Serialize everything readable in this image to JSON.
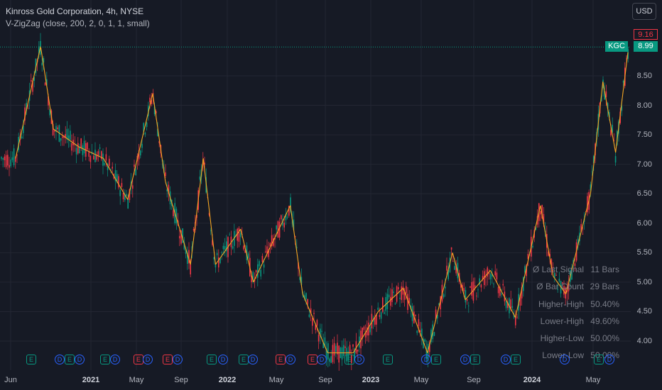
{
  "header": {
    "title": "Kinross Gold Corporation, 4h, NYSE",
    "indicator": "V-ZigZag (close, 200, 2, 0, 1, 1, small)"
  },
  "currency_button": "USD",
  "price_tags": {
    "high": "9.16",
    "symbol": "KGC",
    "last": "8.99"
  },
  "y_axis_labels": [
    "8.50",
    "8.00",
    "7.50",
    "7.00",
    "6.50",
    "6.00",
    "5.50",
    "5.00",
    "4.50",
    "4.00"
  ],
  "x_axis_labels": [
    {
      "text": "Jun",
      "bold": false
    },
    {
      "text": "2021",
      "bold": true
    },
    {
      "text": "May",
      "bold": false
    },
    {
      "text": "Sep",
      "bold": false
    },
    {
      "text": "2022",
      "bold": true
    },
    {
      "text": "May",
      "bold": false
    },
    {
      "text": "Sep",
      "bold": false
    },
    {
      "text": "2023",
      "bold": true
    },
    {
      "text": "May",
      "bold": false
    },
    {
      "text": "Sep",
      "bold": false
    },
    {
      "text": "2024",
      "bold": true
    },
    {
      "text": "May",
      "bold": false
    }
  ],
  "stats": [
    {
      "label": "Ø Last Signal",
      "value": "11 Bars"
    },
    {
      "label": "Ø Bar Count",
      "value": "29 Bars"
    },
    {
      "label": "Higher-High",
      "value": "50.40%"
    },
    {
      "label": "Lower-High",
      "value": "49.60%"
    },
    {
      "label": "Higher-Low",
      "value": "50.00%"
    },
    {
      "label": "Lower-Low",
      "value": "50.00%"
    }
  ],
  "events": [
    {
      "letter": "E",
      "kind": "earnings",
      "color": "#089981"
    },
    {
      "letter": "D",
      "kind": "dividend",
      "color": "#2962ff"
    },
    {
      "letter": "E",
      "kind": "earnings",
      "color": "#089981"
    },
    {
      "letter": "D",
      "kind": "dividend",
      "color": "#2962ff"
    },
    {
      "letter": "E",
      "kind": "earnings",
      "color": "#089981"
    },
    {
      "letter": "D",
      "kind": "dividend",
      "color": "#2962ff"
    },
    {
      "letter": "E",
      "kind": "earnings",
      "color": "#f23645"
    },
    {
      "letter": "D",
      "kind": "dividend",
      "color": "#2962ff"
    },
    {
      "letter": "E",
      "kind": "earnings",
      "color": "#f23645"
    },
    {
      "letter": "D",
      "kind": "dividend",
      "color": "#2962ff"
    },
    {
      "letter": "E",
      "kind": "earnings",
      "color": "#089981"
    },
    {
      "letter": "D",
      "kind": "dividend",
      "color": "#2962ff"
    },
    {
      "letter": "E",
      "kind": "earnings",
      "color": "#089981"
    },
    {
      "letter": "D",
      "kind": "dividend",
      "color": "#2962ff"
    },
    {
      "letter": "E",
      "kind": "earnings",
      "color": "#f23645"
    },
    {
      "letter": "D",
      "kind": "dividend",
      "color": "#2962ff"
    },
    {
      "letter": "E",
      "kind": "earnings",
      "color": "#f23645"
    },
    {
      "letter": "D",
      "kind": "dividend",
      "color": "#2962ff"
    },
    {
      "letter": "E",
      "kind": "earnings",
      "color": "#089981"
    },
    {
      "letter": "D",
      "kind": "dividend",
      "color": "#2962ff"
    },
    {
      "letter": "E",
      "kind": "earnings",
      "color": "#089981"
    },
    {
      "letter": "D",
      "kind": "dividend",
      "color": "#2962ff"
    },
    {
      "letter": "E",
      "kind": "earnings",
      "color": "#089981"
    },
    {
      "letter": "D",
      "kind": "dividend",
      "color": "#2962ff"
    },
    {
      "letter": "E",
      "kind": "earnings",
      "color": "#089981"
    },
    {
      "letter": "D",
      "kind": "dividend",
      "color": "#2962ff"
    },
    {
      "letter": "E",
      "kind": "earnings",
      "color": "#089981"
    },
    {
      "letter": "D",
      "kind": "dividend",
      "color": "#2962ff"
    },
    {
      "letter": "E",
      "kind": "earnings",
      "color": "#089981"
    },
    {
      "letter": "D",
      "kind": "dividend",
      "color": "#2962ff"
    }
  ],
  "colors": {
    "background": "#161a25",
    "up": "#089981",
    "down": "#f23645",
    "zigzag": "#f5a623",
    "grid": "#232632"
  },
  "chart_data": {
    "type": "candlestick",
    "symbol": "KGC",
    "timeframe": "4h",
    "exchange": "NYSE",
    "y_range": [
      3.8,
      9.3
    ],
    "last_price": 8.99,
    "high_price": 9.16,
    "zigzag_pivots": [
      {
        "t": "2020-06",
        "v": 7.1
      },
      {
        "t": "2020-08",
        "v": 9.0
      },
      {
        "t": "2020-09",
        "v": 7.6
      },
      {
        "t": "2020-11",
        "v": 7.3
      },
      {
        "t": "2021-01",
        "v": 7.1
      },
      {
        "t": "2021-03",
        "v": 6.4
      },
      {
        "t": "2021-05",
        "v": 8.2
      },
      {
        "t": "2021-06",
        "v": 6.7
      },
      {
        "t": "2021-08",
        "v": 5.3
      },
      {
        "t": "2021-09",
        "v": 7.1
      },
      {
        "t": "2021-10",
        "v": 5.3
      },
      {
        "t": "2021-12",
        "v": 5.9
      },
      {
        "t": "2022-01",
        "v": 5.0
      },
      {
        "t": "2022-04",
        "v": 6.3
      },
      {
        "t": "2022-05",
        "v": 4.8
      },
      {
        "t": "2022-07",
        "v": 3.8
      },
      {
        "t": "2022-09",
        "v": 3.8
      },
      {
        "t": "2022-11",
        "v": 4.5
      },
      {
        "t": "2023-01",
        "v": 4.9
      },
      {
        "t": "2023-03",
        "v": 3.8
      },
      {
        "t": "2023-05",
        "v": 5.5
      },
      {
        "t": "2023-06",
        "v": 4.7
      },
      {
        "t": "2023-08",
        "v": 5.2
      },
      {
        "t": "2023-10",
        "v": 4.4
      },
      {
        "t": "2023-12",
        "v": 6.3
      },
      {
        "t": "2024-01",
        "v": 5.1
      },
      {
        "t": "2024-02",
        "v": 4.8
      },
      {
        "t": "2024-04",
        "v": 6.5
      },
      {
        "t": "2024-05",
        "v": 8.4
      },
      {
        "t": "2024-06",
        "v": 7.2
      },
      {
        "t": "2024-07",
        "v": 8.9
      }
    ]
  }
}
